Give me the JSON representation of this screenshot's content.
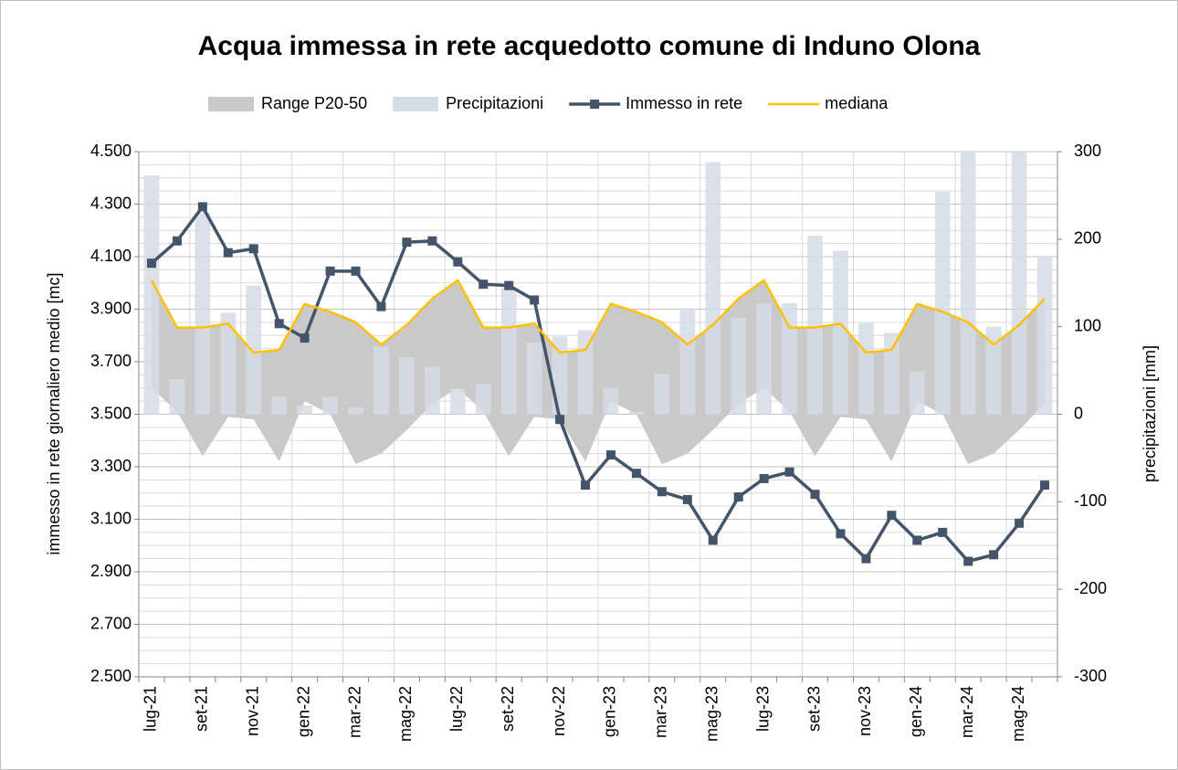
{
  "chart_data": {
    "type": "combo",
    "title": "Acqua immessa in rete acquedotto comune di Induno Olona",
    "y_label": "immesso in rete giornaliero medio [mc]",
    "y2_label": "precipitazioni [mm]",
    "categories": [
      "lug-21",
      null,
      "set-21",
      null,
      "nov-21",
      null,
      "gen-22",
      null,
      "mar-22",
      null,
      "mag-22",
      null,
      "lug-22",
      null,
      "set-22",
      null,
      "nov-22",
      null,
      "gen-23",
      null,
      "mar-23",
      null,
      "mag-23",
      null,
      "lug-23",
      null,
      "set-23",
      null,
      "nov-23",
      null,
      "gen-24",
      null,
      "mar-24",
      null,
      "mag-24",
      null
    ],
    "ylim": [
      2500,
      4500
    ],
    "yticks": [
      {
        "value": 2500,
        "label": "2.500"
      },
      {
        "value": 2700,
        "label": "2.700"
      },
      {
        "value": 2900,
        "label": "2.900"
      },
      {
        "value": 3100,
        "label": "3.100"
      },
      {
        "value": 3300,
        "label": "3.300"
      },
      {
        "value": 3500,
        "label": "3.500"
      },
      {
        "value": 3700,
        "label": "3.700"
      },
      {
        "value": 3900,
        "label": "3.900"
      },
      {
        "value": 4100,
        "label": "4.100"
      },
      {
        "value": 4300,
        "label": "4.300"
      },
      {
        "value": 4500,
        "label": "4.500"
      }
    ],
    "y2lim": [
      -300,
      300
    ],
    "y2ticks": [
      -300,
      -200,
      -100,
      0,
      100,
      200,
      300
    ],
    "grid": true,
    "legend": "top",
    "series": [
      {
        "name": "Range P20-50",
        "kind": "range",
        "color": "#c9c9c9",
        "values": [
          3600,
          3510,
          3340,
          3490,
          3480,
          3320,
          3550,
          3500,
          3310,
          3350,
          3440,
          3540,
          3600,
          3510,
          3340,
          3490,
          3480,
          3320,
          3550,
          3500,
          3310,
          3350,
          3440,
          3540,
          3600,
          3510,
          3340,
          3490,
          3480,
          3320,
          3550,
          3500,
          3310,
          3350,
          3440,
          3540
        ],
        "values_high": [
          4010,
          3830,
          3830,
          3845,
          3735,
          3745,
          3920,
          3890,
          3850,
          3765,
          3840,
          3940,
          4010,
          3830,
          3830,
          3845,
          3735,
          3745,
          3920,
          3890,
          3850,
          3765,
          3840,
          3940,
          4010,
          3830,
          3830,
          3845,
          3735,
          3745,
          3920,
          3890,
          3850,
          3765,
          3840,
          3940
        ]
      },
      {
        "name": "Precipitazioni",
        "kind": "bar",
        "axis": "y2",
        "color": "#d6dce5",
        "values": [
          273,
          40,
          230,
          116,
          147,
          20,
          10,
          20,
          8,
          77,
          65,
          54,
          29,
          35,
          145,
          82,
          89,
          96,
          30,
          3,
          46,
          121,
          288,
          110,
          127,
          127,
          204,
          187,
          104,
          93,
          49,
          254,
          300,
          100,
          300,
          180
        ]
      },
      {
        "name": "Immesso in rete",
        "kind": "line",
        "marker": "square",
        "color": "#44546a",
        "values": [
          4075,
          4160,
          4290,
          4115,
          4130,
          3845,
          3790,
          4045,
          4045,
          3910,
          4155,
          4160,
          4080,
          3995,
          3990,
          3935,
          3480,
          3230,
          3345,
          3275,
          3205,
          3175,
          3020,
          3185,
          3255,
          3280,
          3195,
          3045,
          2950,
          3115,
          3020,
          3050,
          2940,
          2965,
          3085,
          3230
        ]
      },
      {
        "name": "mediana",
        "kind": "line",
        "color": "#ffc000",
        "values": [
          4010,
          3830,
          3830,
          3845,
          3735,
          3745,
          3920,
          3890,
          3850,
          3765,
          3840,
          3940,
          4010,
          3830,
          3830,
          3845,
          3735,
          3745,
          3920,
          3890,
          3850,
          3765,
          3840,
          3940,
          4010,
          3830,
          3830,
          3845,
          3735,
          3745,
          3920,
          3890,
          3850,
          3765,
          3840,
          3940
        ]
      }
    ]
  }
}
